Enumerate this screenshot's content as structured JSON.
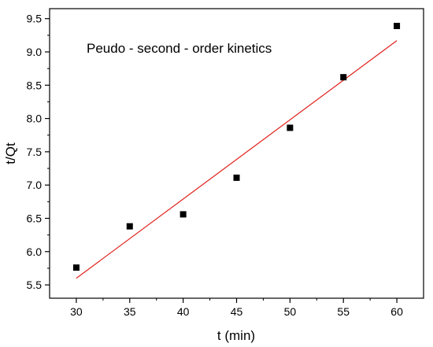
{
  "chart_data": {
    "type": "scatter",
    "title": "",
    "annotation": "Peudo - second - order kinetics",
    "xlabel": "t (min)",
    "ylabel": "t/Qt",
    "xlim": [
      27.5,
      62.5
    ],
    "ylim": [
      5.3,
      9.65
    ],
    "xticks": [
      30,
      35,
      40,
      45,
      50,
      55,
      60
    ],
    "yticks": [
      5.5,
      6.0,
      6.5,
      7.0,
      7.5,
      8.0,
      8.5,
      9.0,
      9.5
    ],
    "xtick_labels": [
      "30",
      "35",
      "40",
      "45",
      "50",
      "55",
      "60"
    ],
    "ytick_labels": [
      "5.5",
      "6.0",
      "6.5",
      "7.0",
      "7.5",
      "8.0",
      "8.5",
      "9.0",
      "9.5"
    ],
    "grid": false,
    "series": [
      {
        "type": "scatter",
        "marker": "square",
        "color": "#000000",
        "x": [
          30,
          35,
          40,
          45,
          50,
          55,
          60
        ],
        "y": [
          5.76,
          6.38,
          6.56,
          7.11,
          7.86,
          8.62,
          9.39
        ]
      },
      {
        "type": "line",
        "color": "#e0201a",
        "x": [
          30,
          60
        ],
        "y": [
          5.6,
          9.17
        ]
      }
    ]
  }
}
